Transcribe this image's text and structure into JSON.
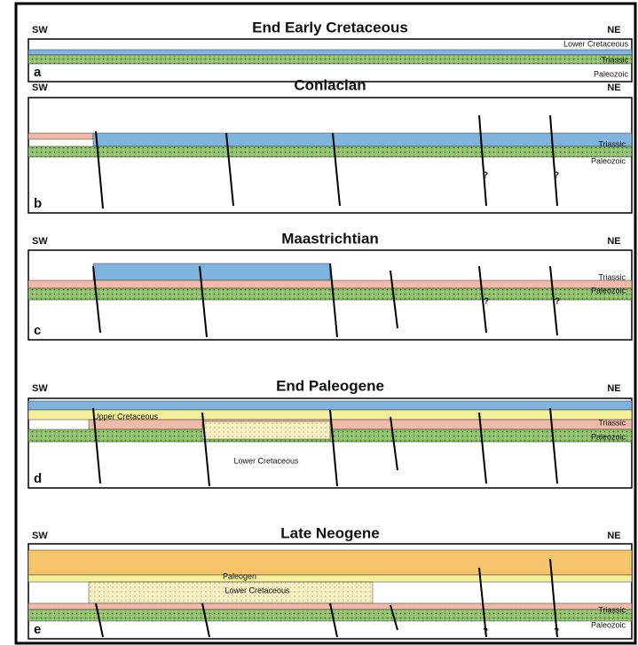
{
  "panels": [
    {
      "title": "End Early Cretaceous",
      "left": "SW",
      "right": "NE",
      "letter": "a",
      "labels": [
        "Lower Cretaceous",
        "Triassic",
        "Paleozoic"
      ],
      "marks": []
    },
    {
      "title": "Coniacian",
      "left": "SW",
      "right": "NE",
      "letter": "b",
      "labels": [
        "Triassic",
        "Paleozoic"
      ],
      "marks": [
        "?",
        "?"
      ]
    },
    {
      "title": "Maastrichtian",
      "left": "SW",
      "right": "NE",
      "letter": "c",
      "labels": [
        "Triassic",
        "Paleozoic"
      ],
      "marks": [
        "?",
        "?"
      ]
    },
    {
      "title": "End Paleogene",
      "left": "SW",
      "right": "NE",
      "letter": "d",
      "labels": [
        "Upper Cretaceous",
        "Triassic",
        "Paleozoic",
        "Lower Cretaceous"
      ],
      "marks": []
    },
    {
      "title": "Late Neogene",
      "left": "SW",
      "right": "NE",
      "letter": "e",
      "labels": [
        "Paleogen",
        "Lower Cretaceous",
        "Triassic",
        "Paleozoic"
      ],
      "marks": [
        "?",
        "?"
      ]
    }
  ]
}
